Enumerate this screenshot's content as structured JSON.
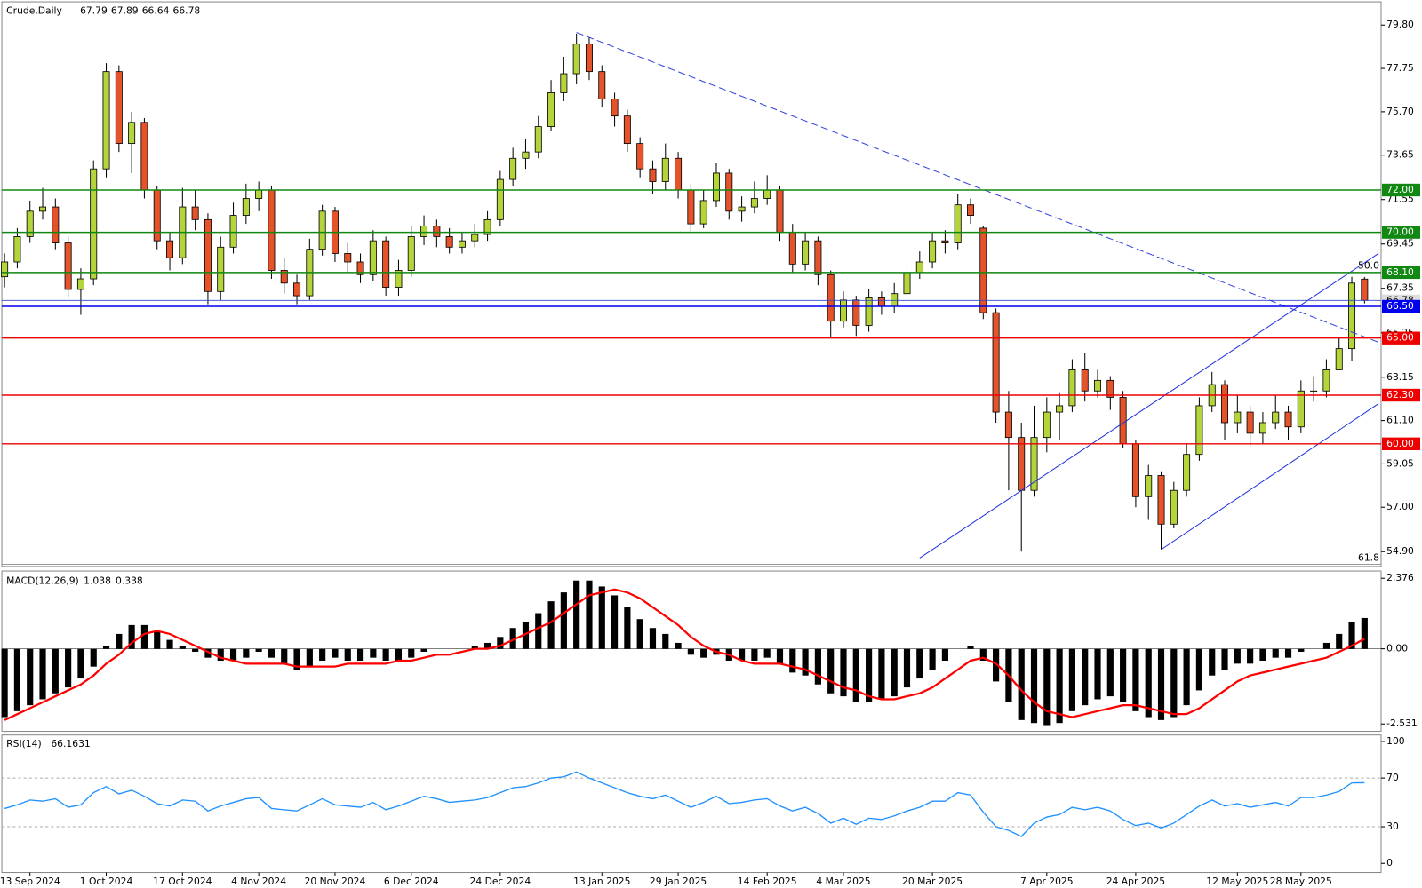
{
  "chart_data": [
    {
      "type": "candlestick",
      "title": "Crude,Daily",
      "categories": [
        null,
        null,
        "13 Sep 2024",
        null,
        null,
        null,
        null,
        null,
        "1 Oct 2024",
        null,
        null,
        null,
        null,
        null,
        "17 Oct 2024",
        null,
        null,
        null,
        null,
        null,
        "4 Nov 2024",
        null,
        null,
        null,
        null,
        null,
        "20 Nov 2024",
        null,
        null,
        null,
        null,
        null,
        "6 Dec 2024",
        null,
        null,
        null,
        null,
        null,
        null,
        "24 Dec 2024",
        null,
        null,
        null,
        null,
        null,
        null,
        null,
        "13 Jan 2025",
        null,
        null,
        null,
        null,
        null,
        "29 Jan 2025",
        null,
        null,
        null,
        null,
        null,
        null,
        "14 Feb 2025",
        null,
        null,
        null,
        null,
        null,
        "4 Mar 2025",
        null,
        null,
        null,
        null,
        null,
        null,
        "20 Mar 2025",
        null,
        null,
        null,
        null,
        null,
        null,
        null,
        null,
        "7 Apr 2025",
        null,
        null,
        null,
        null,
        null,
        null,
        "24 Apr 2025",
        null,
        null,
        null,
        null,
        null,
        null,
        null,
        "12 May 2025",
        null,
        null,
        null,
        null,
        "28 May 2025",
        null,
        null,
        null,
        null,
        null
      ],
      "open": [
        67.9,
        68.6,
        69.8,
        71.0,
        71.2,
        69.5,
        67.3,
        67.8,
        73.0,
        77.6,
        74.2,
        75.2,
        72.0,
        69.6,
        68.8,
        71.2,
        70.6,
        67.2,
        69.3,
        70.8,
        71.6,
        72.0,
        68.2,
        67.6,
        67.0,
        69.2,
        71.0,
        69.0,
        68.6,
        68.0,
        69.6,
        67.4,
        68.2,
        69.8,
        70.3,
        69.8,
        69.3,
        69.6,
        69.9,
        70.6,
        72.5,
        73.5,
        73.8,
        75.0,
        76.6,
        77.5,
        78.9,
        77.6,
        76.3,
        75.5,
        74.2,
        73.0,
        72.4,
        73.5,
        72.0,
        70.4,
        71.5,
        72.8,
        71.0,
        71.2,
        71.6,
        72.0,
        70.0,
        68.5,
        69.6,
        68.0,
        65.8,
        66.8,
        65.6,
        66.9,
        66.5,
        67.1,
        68.1,
        68.6,
        69.6,
        69.5,
        71.3,
        70.2,
        66.2,
        61.5,
        60.3,
        57.8,
        60.3,
        61.5,
        61.8,
        63.5,
        62.5,
        63.0,
        62.2,
        60.0,
        57.5,
        58.5,
        56.2,
        57.8,
        59.5,
        61.8,
        62.8,
        61.0,
        61.5,
        60.5,
        61.0,
        61.5,
        60.8,
        62.5,
        62.5,
        63.5,
        64.5,
        67.79
      ],
      "high": [
        69.0,
        70.2,
        71.5,
        72.1,
        71.6,
        69.8,
        68.3,
        73.4,
        78.0,
        77.9,
        75.7,
        75.4,
        72.2,
        70.0,
        72.1,
        72.0,
        70.9,
        69.8,
        71.4,
        72.3,
        72.4,
        72.2,
        68.8,
        68.0,
        69.7,
        71.3,
        71.2,
        69.5,
        69.0,
        70.1,
        69.8,
        68.7,
        70.3,
        70.8,
        70.6,
        70.2,
        70.0,
        70.4,
        71.0,
        72.9,
        74.0,
        74.4,
        75.5,
        77.2,
        78.3,
        79.4,
        79.2,
        77.9,
        76.6,
        75.8,
        74.5,
        73.4,
        74.2,
        73.8,
        72.3,
        72.0,
        73.3,
        73.0,
        71.7,
        72.4,
        72.7,
        72.2,
        70.4,
        70.0,
        69.8,
        68.2,
        67.2,
        67.0,
        67.3,
        67.2,
        67.6,
        68.6,
        69.1,
        70.0,
        70.1,
        71.8,
        71.6,
        70.3,
        66.4,
        62.5,
        61.0,
        61.8,
        62.2,
        62.4,
        64.0,
        64.3,
        63.5,
        63.2,
        62.5,
        60.2,
        59.0,
        58.7,
        58.2,
        60.0,
        62.2,
        63.4,
        63.0,
        62.3,
        61.8,
        61.5,
        62.3,
        61.8,
        63.0,
        63.2,
        64.0,
        65.0,
        67.9,
        67.89
      ],
      "low": [
        67.4,
        68.3,
        69.5,
        70.6,
        69.2,
        66.9,
        66.1,
        67.5,
        72.6,
        73.8,
        72.8,
        71.6,
        69.2,
        68.2,
        68.5,
        70.1,
        66.6,
        66.8,
        69.0,
        70.4,
        71.0,
        67.8,
        67.1,
        66.6,
        66.8,
        68.9,
        68.6,
        68.1,
        67.6,
        67.7,
        67.0,
        67.0,
        67.9,
        69.4,
        69.3,
        69.0,
        69.0,
        69.3,
        69.6,
        70.3,
        72.2,
        73.0,
        73.5,
        74.8,
        76.2,
        77.0,
        77.2,
        75.9,
        75.0,
        73.8,
        72.6,
        71.8,
        72.0,
        71.6,
        70.0,
        70.2,
        71.2,
        70.6,
        70.5,
        70.9,
        71.3,
        69.6,
        68.1,
        68.2,
        67.5,
        65.0,
        65.5,
        65.1,
        65.3,
        66.1,
        66.2,
        66.8,
        67.8,
        68.3,
        69.0,
        69.2,
        70.4,
        65.9,
        61.0,
        57.8,
        54.9,
        57.5,
        59.6,
        60.2,
        61.5,
        62.0,
        62.2,
        61.6,
        59.8,
        57.0,
        56.4,
        55.0,
        56.0,
        57.5,
        59.2,
        61.5,
        60.2,
        60.5,
        59.9,
        60.0,
        60.7,
        60.2,
        60.5,
        62.0,
        62.2,
        63.7,
        63.9,
        66.64
      ],
      "close": [
        68.6,
        69.8,
        71.0,
        71.2,
        69.5,
        67.3,
        67.8,
        73.0,
        77.6,
        74.2,
        75.2,
        72.0,
        69.6,
        68.8,
        71.2,
        70.6,
        67.2,
        69.3,
        70.8,
        71.6,
        72.0,
        68.2,
        67.6,
        67.0,
        69.2,
        71.0,
        69.0,
        68.6,
        68.0,
        69.6,
        67.4,
        68.2,
        69.8,
        70.3,
        69.8,
        69.3,
        69.6,
        69.9,
        70.6,
        72.5,
        73.5,
        73.8,
        75.0,
        76.6,
        77.5,
        78.9,
        77.6,
        76.3,
        75.5,
        74.2,
        73.0,
        72.4,
        73.5,
        72.0,
        70.4,
        71.5,
        72.8,
        71.0,
        71.2,
        71.6,
        72.0,
        70.0,
        68.5,
        69.6,
        68.0,
        65.8,
        66.8,
        65.6,
        66.9,
        66.5,
        67.1,
        68.1,
        68.6,
        69.6,
        69.5,
        71.3,
        70.8,
        66.2,
        61.5,
        60.3,
        57.8,
        60.3,
        61.5,
        61.8,
        63.5,
        62.5,
        63.0,
        62.2,
        60.0,
        57.5,
        58.5,
        56.2,
        57.8,
        59.5,
        61.8,
        62.8,
        61.0,
        61.5,
        60.5,
        61.0,
        61.5,
        60.8,
        62.5,
        62.5,
        63.5,
        64.5,
        67.6,
        66.78
      ],
      "up_color": "#b4d43c",
      "down_color": "#e5532b",
      "ylim": [
        54.2,
        80.9
      ],
      "yticks": [
        {
          "value": 79.8,
          "label": "79.80"
        },
        {
          "value": 77.75,
          "label": "77.75"
        },
        {
          "value": 75.7,
          "label": "75.70"
        },
        {
          "value": 73.65,
          "label": "73.65"
        },
        {
          "value": 71.55,
          "label": "71.55"
        },
        {
          "value": 69.45,
          "label": "69.45"
        },
        {
          "value": 67.35,
          "label": "67.35"
        },
        {
          "value": 65.25,
          "label": "65.25"
        },
        {
          "value": 63.15,
          "label": "63.15"
        },
        {
          "value": 61.1,
          "label": "61.10"
        },
        {
          "value": 59.05,
          "label": "59.05"
        },
        {
          "value": 57,
          "label": "57.00"
        },
        {
          "value": 54.9,
          "label": "54.90"
        }
      ],
      "levels": [
        {
          "value": 72,
          "label": "72.00",
          "color": "#118811"
        },
        {
          "value": 70,
          "label": "70.00",
          "color": "#118811"
        },
        {
          "value": 68.1,
          "label": "68.10",
          "color": "#118811"
        },
        {
          "value": 66.5,
          "label": "66.50",
          "color": "#0000ee"
        },
        {
          "value": 65,
          "label": "65.00",
          "color": "#ee0000"
        },
        {
          "value": 62.3,
          "label": "62.30",
          "color": "#ee0000"
        },
        {
          "value": 60,
          "label": "60.00",
          "color": "#ee0000"
        }
      ],
      "fib_levels": [
        {
          "value": 68.1,
          "label": "50.0"
        },
        {
          "value": 54.3,
          "label": "61.8"
        }
      ],
      "trendlines": [
        {
          "x": [
            45,
            108.1
          ],
          "y": [
            79.45,
            64.8
          ],
          "color": "#3344dd",
          "dashed": true
        },
        {
          "x": [
            72,
            108.1
          ],
          "y": [
            54.6,
            69.0
          ],
          "color": "#2233dd",
          "dashed": false
        },
        {
          "x": [
            91,
            108.1
          ],
          "y": [
            55.0,
            61.9
          ],
          "color": "#2233dd",
          "dashed": false
        }
      ]
    },
    {
      "type": "macd",
      "title": "MACD(12,26,9)",
      "histogram": [
        -2.3,
        -2.1,
        -1.9,
        -1.7,
        -1.5,
        -1.3,
        -1.0,
        -0.6,
        0.1,
        0.5,
        0.8,
        0.8,
        0.6,
        0.3,
        0.1,
        -0.1,
        -0.3,
        -0.4,
        -0.4,
        -0.3,
        -0.1,
        -0.3,
        -0.5,
        -0.7,
        -0.6,
        -0.4,
        -0.3,
        -0.4,
        -0.4,
        -0.3,
        -0.4,
        -0.4,
        -0.3,
        -0.1,
        0,
        0,
        0,
        0.1,
        0.2,
        0.4,
        0.7,
        0.9,
        1.2,
        1.6,
        1.9,
        2.3,
        2.3,
        2.1,
        1.8,
        1.4,
        1.0,
        0.7,
        0.5,
        0.2,
        -0.2,
        -0.3,
        -0.2,
        -0.4,
        -0.4,
        -0.4,
        -0.3,
        -0.5,
        -0.8,
        -0.9,
        -1.2,
        -1.5,
        -1.6,
        -1.8,
        -1.8,
        -1.7,
        -1.6,
        -1.3,
        -1.0,
        -0.7,
        -0.4,
        0,
        0.1,
        -0.4,
        -1.1,
        -1.8,
        -2.4,
        -2.5,
        -2.6,
        -2.5,
        -2.1,
        -1.9,
        -1.7,
        -1.6,
        -1.8,
        -2.1,
        -2.3,
        -2.4,
        -2.3,
        -1.9,
        -1.4,
        -0.9,
        -0.7,
        -0.5,
        -0.5,
        -0.4,
        -0.3,
        -0.3,
        -0.1,
        0,
        0.2,
        0.5,
        0.9,
        1.038
      ],
      "signal": [
        -2.4,
        -2.2,
        -2.0,
        -1.8,
        -1.6,
        -1.4,
        -1.2,
        -0.9,
        -0.5,
        -0.2,
        0.2,
        0.5,
        0.6,
        0.5,
        0.3,
        0.1,
        -0.1,
        -0.3,
        -0.4,
        -0.5,
        -0.5,
        -0.5,
        -0.5,
        -0.6,
        -0.6,
        -0.6,
        -0.6,
        -0.5,
        -0.5,
        -0.5,
        -0.5,
        -0.4,
        -0.4,
        -0.3,
        -0.2,
        -0.2,
        -0.1,
        0,
        0,
        0.1,
        0.3,
        0.5,
        0.7,
        0.9,
        1.2,
        1.5,
        1.8,
        1.9,
        2.0,
        1.9,
        1.7,
        1.4,
        1.1,
        0.8,
        0.4,
        0.1,
        -0.1,
        -0.2,
        -0.4,
        -0.5,
        -0.5,
        -0.5,
        -0.6,
        -0.7,
        -0.9,
        -1.1,
        -1.3,
        -1.4,
        -1.6,
        -1.7,
        -1.7,
        -1.6,
        -1.5,
        -1.3,
        -1.0,
        -0.7,
        -0.4,
        -0.3,
        -0.5,
        -0.9,
        -1.4,
        -1.8,
        -2.1,
        -2.2,
        -2.3,
        -2.2,
        -2.1,
        -2.0,
        -1.9,
        -1.9,
        -2.0,
        -2.1,
        -2.2,
        -2.2,
        -2.0,
        -1.7,
        -1.4,
        -1.1,
        -0.9,
        -0.8,
        -0.7,
        -0.6,
        -0.5,
        -0.4,
        -0.3,
        -0.1,
        0.1,
        0.338
      ],
      "histogram_color": "#000000",
      "signal_color": "#ff0000",
      "ylim": [
        -2.78,
        2.62
      ],
      "yticks": [
        2.376,
        {
          "value": 0,
          "label": "0.00"
        },
        -2.531
      ]
    },
    {
      "type": "line",
      "title": "RSI(14)",
      "values": [
        45,
        48,
        52,
        51,
        53,
        46,
        48,
        58,
        63,
        57,
        60,
        55,
        49,
        47,
        52,
        51,
        43,
        47,
        50,
        53,
        54,
        45,
        44,
        43,
        48,
        53,
        48,
        47,
        46,
        50,
        44,
        47,
        51,
        55,
        53,
        50,
        51,
        52,
        54,
        58,
        62,
        63,
        66,
        70,
        71,
        75,
        70,
        66,
        62,
        58,
        55,
        53,
        56,
        51,
        46,
        50,
        55,
        49,
        50,
        52,
        53,
        47,
        43,
        46,
        41,
        33,
        37,
        32,
        37,
        36,
        39,
        43,
        46,
        51,
        51,
        58,
        56,
        42,
        30,
        27,
        22,
        33,
        38,
        40,
        46,
        44,
        46,
        43,
        36,
        31,
        33,
        29,
        33,
        40,
        47,
        52,
        47,
        49,
        46,
        48,
        50,
        47,
        54,
        54,
        56,
        59,
        66,
        66.1631
      ],
      "color": "#1e90ff",
      "ylim": [
        -7.5,
        105.3
      ],
      "yticks": [
        100,
        70,
        30,
        0
      ],
      "levels": [
        70,
        30
      ]
    }
  ]
}
